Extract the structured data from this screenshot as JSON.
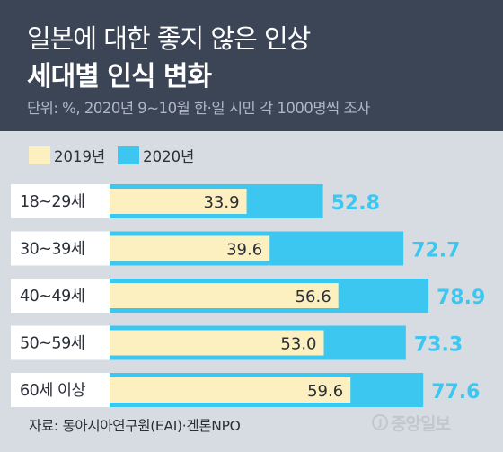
{
  "header": {
    "title_line1": "일본에 대한 좋지 않은 인상",
    "title_line2": "세대별 인식 변화",
    "subtitle": "단위: %, 2020년 9~10월 한·일 시민 각 1000명씩 조사"
  },
  "footer": {
    "source": "자료: 동아시아연구원(EAI)·겐론NPO",
    "logo_text": "중앙일보",
    "logo_mark": "J"
  },
  "colors": {
    "header_bg": "#3c4556",
    "panel_bg": "#d7dce3",
    "series_2019": "#fcefc0",
    "series_2020": "#3cc7f0"
  },
  "chart_data": {
    "type": "bar",
    "orientation": "horizontal",
    "categories": [
      "18~29세",
      "30~39세",
      "40~49세",
      "50~59세",
      "60세 이상"
    ],
    "series": [
      {
        "name": "2019년",
        "values": [
          33.9,
          39.6,
          56.6,
          53.0,
          59.6
        ],
        "labels": [
          "33.9",
          "39.6",
          "56.6",
          "53.0",
          "59.6"
        ],
        "color": "#fcefc0"
      },
      {
        "name": "2020년",
        "values": [
          52.8,
          72.7,
          78.9,
          73.3,
          77.6
        ],
        "labels": [
          "52.8",
          "72.7",
          "78.9",
          "73.3",
          "77.6"
        ],
        "color": "#3cc7f0"
      }
    ],
    "xlim": [
      0,
      100
    ],
    "grid": false,
    "legend": "top-left",
    "bars_overlapping": true
  }
}
